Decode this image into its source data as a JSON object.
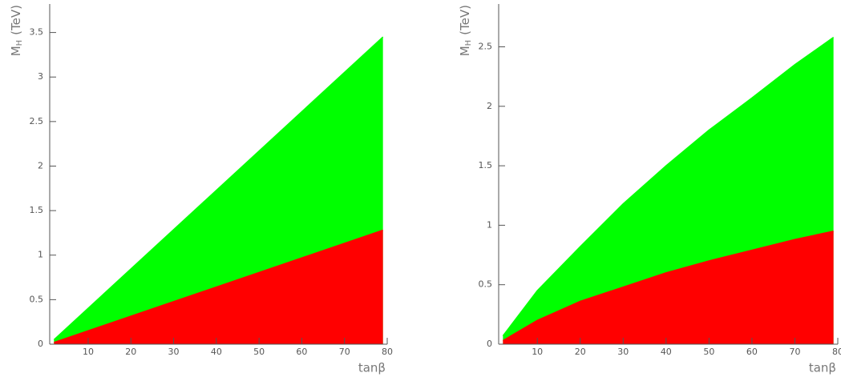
{
  "chart_data": [
    {
      "type": "area",
      "x": [
        2,
        79
      ],
      "series": [
        {
          "color": "#00ff00",
          "values": [
            0.05,
            3.45
          ]
        },
        {
          "color": "#ff0000",
          "values": [
            0.02,
            1.28
          ]
        }
      ],
      "xlim": [
        1,
        80
      ],
      "ylim": [
        0,
        3.82
      ],
      "xticks": [
        10,
        20,
        30,
        40,
        50,
        60,
        70,
        80
      ],
      "yticks": [
        0,
        0.5,
        1,
        1.5,
        2,
        2.5,
        3,
        3.5
      ],
      "xlabel": "tanβ",
      "ylabel": "M",
      "ylabel_subscript": "H",
      "ylabel_unit": "(TeV)"
    },
    {
      "type": "area",
      "x": [
        2,
        10,
        20,
        30,
        40,
        50,
        60,
        70,
        79
      ],
      "series": [
        {
          "color": "#00ff00",
          "values": [
            0.07,
            0.45,
            0.82,
            1.18,
            1.5,
            1.8,
            2.07,
            2.35,
            2.58
          ]
        },
        {
          "color": "#ff0000",
          "values": [
            0.03,
            0.2,
            0.36,
            0.48,
            0.6,
            0.7,
            0.79,
            0.88,
            0.95
          ]
        }
      ],
      "xlim": [
        1,
        80
      ],
      "ylim": [
        0,
        2.86
      ],
      "xticks": [
        10,
        20,
        30,
        40,
        50,
        60,
        70,
        80
      ],
      "yticks": [
        0,
        0.5,
        1,
        1.5,
        2,
        2.5
      ],
      "xlabel": "tanβ",
      "ylabel": "M",
      "ylabel_subscript": "H",
      "ylabel_unit": "(TeV)"
    }
  ]
}
